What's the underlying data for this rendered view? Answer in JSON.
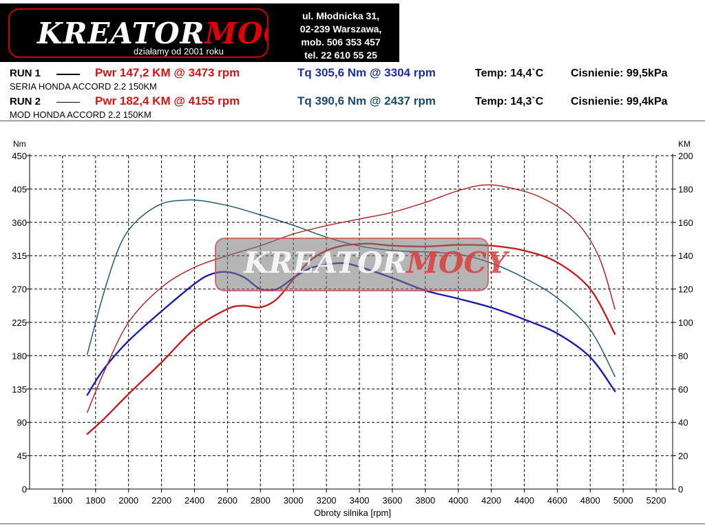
{
  "header": {
    "logo_part1": "KREATOR",
    "logo_part2": "MOCY",
    "logo_tagline": "działamy od 2001 roku",
    "address_line1": "ul. Młodnicka 31,",
    "address_line2": "02-239  Warszawa,",
    "mobile": "mob.  506 353 457",
    "phone": "tel.  22 610 55 25"
  },
  "runs": [
    {
      "label": "RUN 1",
      "pwr": "Pwr  147,2 KM @ 3473 rpm",
      "tq": "Tq 305,6 Nm @ 3304 rpm",
      "temp": "Temp: 14,4`C",
      "pressure": "Cisnienie: 99,5kPa",
      "description": "SERIA HONDA ACCORD 2.2 150KM"
    },
    {
      "label": "RUN 2",
      "pwr": "Pwr  182,4 KM @ 4155 rpm",
      "tq": "Tq 390,6 Nm @ 2437 rpm",
      "temp": "Temp: 14,3`C",
      "pressure": "Cisnienie: 99,4kPa",
      "description": "MOD HONDA ACCORD 2.2 150KM"
    }
  ],
  "chart_data": {
    "type": "line",
    "xlabel": "Obroty silnika [rpm]",
    "ylabel_left": "Nm",
    "ylabel_right": "KM",
    "xlim": [
      1400,
      5300
    ],
    "ylim_left": [
      0,
      450
    ],
    "ylim_right": [
      0,
      200
    ],
    "x_ticks": [
      1600,
      1800,
      2000,
      2200,
      2400,
      2600,
      2800,
      3000,
      3200,
      3400,
      3600,
      3800,
      4000,
      4200,
      4400,
      4600,
      4800,
      5000,
      5200
    ],
    "y_ticks_left": [
      0,
      45,
      90,
      135,
      180,
      225,
      270,
      315,
      360,
      405,
      450
    ],
    "y_ticks_right": [
      0,
      20,
      40,
      60,
      80,
      100,
      120,
      140,
      160,
      180,
      200
    ],
    "grid": true,
    "colors": {
      "run1_torque": "#1c1caa",
      "run2_torque": "#1e5a70",
      "run1_power": "#c41e1e",
      "run2_power": "#b02828"
    },
    "series": [
      {
        "axis": "left",
        "x": [
          1750,
          1850,
          2000,
          2200,
          2400,
          2500,
          2600,
          2700,
          2800,
          2900,
          3000,
          3100,
          3200,
          3300,
          3400,
          3600,
          3800,
          4000,
          4200,
          4400,
          4600,
          4800,
          4950
        ],
        "y": [
          127,
          162,
          200,
          240,
          277,
          290,
          293,
          286,
          270,
          270,
          285,
          298,
          303,
          305,
          300,
          285,
          268,
          257,
          245,
          229,
          210,
          178,
          132
        ]
      },
      {
        "axis": "left",
        "x": [
          1750,
          1850,
          1950,
          2050,
          2200,
          2350,
          2450,
          2550,
          2650,
          2800,
          3000,
          3200,
          3400,
          3600,
          3800,
          4000,
          4200,
          4400,
          4600,
          4800,
          4950
        ],
        "y": [
          182,
          265,
          330,
          362,
          385,
          390,
          389,
          385,
          380,
          370,
          356,
          340,
          328,
          322,
          320,
          317,
          305,
          285,
          258,
          215,
          152
        ]
      },
      {
        "axis": "right",
        "x": [
          1750,
          1850,
          2000,
          2200,
          2400,
          2600,
          2700,
          2800,
          2900,
          3000,
          3100,
          3200,
          3300,
          3400,
          3473,
          3600,
          3800,
          4000,
          4200,
          4400,
          4600,
          4800,
          4950
        ],
        "y": [
          33,
          42,
          57,
          76,
          96,
          108,
          110,
          109,
          114,
          126,
          137,
          143,
          146,
          147,
          147.2,
          146,
          145.5,
          146.5,
          146,
          143,
          136,
          120,
          93
        ]
      },
      {
        "axis": "right",
        "x": [
          1750,
          1850,
          2000,
          2200,
          2400,
          2600,
          2800,
          3000,
          3200,
          3400,
          3600,
          3800,
          4000,
          4155,
          4300,
          4500,
          4700,
          4850,
          4950
        ],
        "y": [
          46,
          70,
          100,
          121,
          133,
          140,
          146,
          153,
          158,
          162,
          166,
          172,
          179,
          182.4,
          181,
          175,
          162,
          140,
          108
        ]
      }
    ]
  }
}
